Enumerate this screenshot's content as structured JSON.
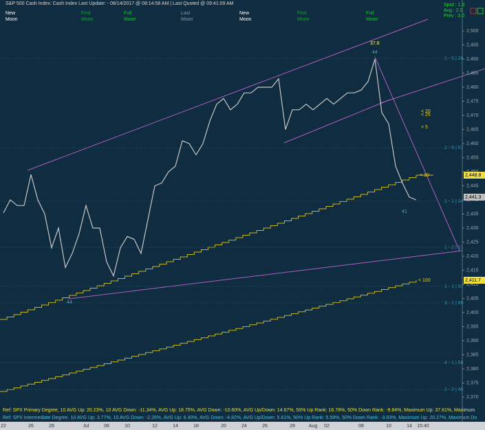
{
  "header": {
    "title": "S&P 500 Cash Index:  Cash Index  Last Update: - 08/14/2017 @ 08:14:58 AM | Last Quoted @ 09:41:09 AM",
    "moons": [
      [
        "New",
        "Moon"
      ],
      [
        "First",
        "Moon"
      ],
      [
        "Full",
        "Moon"
      ],
      [
        "Last",
        "Moon"
      ],
      [
        "New",
        "Moon"
      ],
      [
        "First",
        "Moon"
      ],
      [
        "Full",
        "Moon"
      ]
    ],
    "stats": [
      "Sprd : 1.3",
      "Avg : 2.0",
      "Prev : 3.0"
    ]
  },
  "chart_data": {
    "type": "line",
    "color": "#c8c8c8",
    "categories": [
      "22",
      null,
      null,
      null,
      "26",
      null,
      null,
      "28",
      null,
      null,
      null,
      null,
      "Jul",
      null,
      null,
      "06",
      null,
      null,
      "10",
      null,
      null,
      null,
      "12",
      null,
      null,
      "14",
      null,
      null,
      "18",
      null,
      null,
      null,
      "20",
      null,
      null,
      "24",
      null,
      null,
      "26",
      null,
      null,
      null,
      "28",
      null,
      null,
      "Aug",
      null,
      "02",
      null,
      null,
      null,
      null,
      "08",
      null,
      null,
      null,
      "10",
      null,
      null,
      "14",
      null,
      "15:40",
      null
    ],
    "values": [
      2435.4,
      2440,
      2438,
      2438,
      2449,
      2440,
      2435,
      2423,
      2430,
      2416,
      2421,
      2428,
      2438,
      2430,
      2430,
      2418,
      2413,
      2423,
      2427,
      2426,
      2421,
      2433,
      2445,
      2446,
      2450,
      2452,
      2461,
      2460,
      2456,
      2460,
      2468,
      2474,
      2476,
      2472,
      2474,
      2478,
      2478,
      2480,
      2480,
      2480,
      2483,
      2465,
      2472,
      2472,
      2474,
      2472,
      2474,
      2476,
      2474,
      2476,
      2478,
      2478,
      2479,
      2482,
      2490,
      2471,
      2467,
      2452,
      2446,
      2441,
      2440,
      null,
      null
    ],
    "ylim": [
      2370,
      2500
    ],
    "grid": false,
    "yticks": [
      {
        "value": 2370,
        "label": "2,370"
      },
      {
        "value": 2375,
        "label": "2,375"
      },
      {
        "value": 2380,
        "label": "2,380"
      },
      {
        "value": 2385,
        "label": "2,385"
      },
      {
        "value": 2390,
        "label": "2,390"
      },
      {
        "value": 2395,
        "label": "2,395"
      },
      {
        "value": 2400,
        "label": "2,400"
      },
      {
        "value": 2405,
        "label": "2,405"
      },
      {
        "value": 2410,
        "label": "2,410"
      },
      {
        "value": 2415,
        "label": "2,415"
      },
      {
        "value": 2420,
        "label": "2,420"
      },
      {
        "value": 2425,
        "label": "2,425"
      },
      {
        "value": 2430,
        "label": "2,430"
      },
      {
        "value": 2435,
        "label": "2,435"
      },
      {
        "value": 2440,
        "label": "2,440"
      },
      {
        "value": 2445,
        "label": "2,445"
      },
      {
        "value": 2450,
        "label": "2,450"
      },
      {
        "value": 2455,
        "label": "2,455"
      },
      {
        "value": 2460,
        "label": "2,460"
      },
      {
        "value": 2465,
        "label": "2,465"
      },
      {
        "value": 2470,
        "label": "2,470"
      },
      {
        "value": 2475,
        "label": "2,475"
      },
      {
        "value": 2480,
        "label": "2,480"
      },
      {
        "value": 2485,
        "label": "2,485"
      },
      {
        "value": 2490,
        "label": "2,490"
      },
      {
        "value": 2495,
        "label": "2,495"
      },
      {
        "value": 2500,
        "label": "2,500"
      }
    ],
    "annotations": [
      "37.6",
      "44",
      "< 20",
      "< 25",
      "< 5",
      "< 10",
      "< 100",
      "44",
      "41"
    ],
    "price_labels": [
      "2,448.8",
      "2,441.3",
      "2,411.7"
    ],
    "level_labels": [
      "1 - 5 | 26",
      "2 - 5 | 57",
      "1 - 1 | 34",
      "1 - 2 | 21",
      "1 - 1 | 57",
      "3 - 1 | 68",
      "4 - 1 | 58",
      "2 - 2 | 48"
    ]
  },
  "footer": [
    "Ref: SPX Primary Degree, 10 AVG Up: 20.23%, 10 AVG Down: -11.34%, AVG Up: 18.75%, AVG Down: -10.60%, AVG Up/Down: 14.67%, 50%  Up Rank: 16.78%, 50% Down Rank: -9.84%, Maximum Up: 37.61%, Maximum",
    "Ref: SPX Intermediate Degree, 10 AVG Up: 3.77%, 10 AVG Down: -2.26%, AVG Up: 6.40%, AVG Down: -4.82%, AVG Up/Down: 5.61%, 50%  Up Rank: 5.59%, 50% Down Rank: -3.93%, Maximum Up: 20.27%, Maximum Do"
  ]
}
